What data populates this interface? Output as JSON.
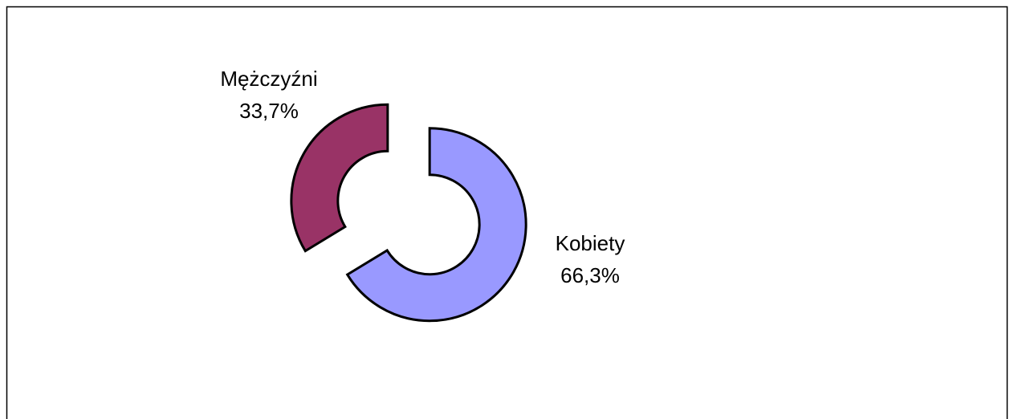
{
  "chart_data": {
    "type": "donut",
    "categories": [
      "Kobiety",
      "Mężczyźni"
    ],
    "values": [
      66.3,
      33.7
    ],
    "value_labels": [
      "66,3%",
      "33,7%"
    ],
    "colors": [
      "#9999ff",
      "#993366"
    ]
  }
}
